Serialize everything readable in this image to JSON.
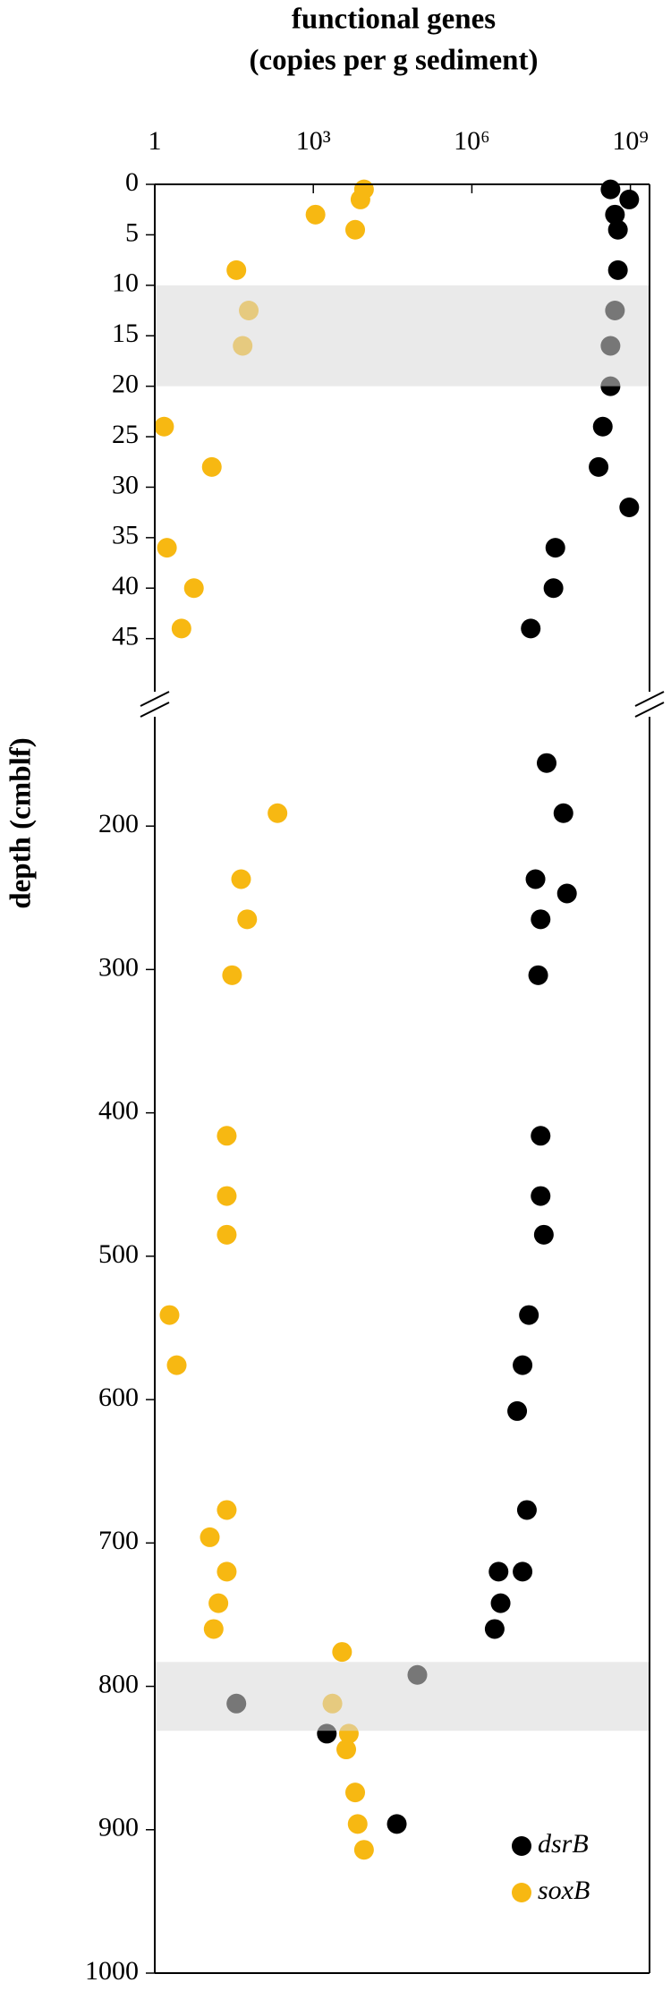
{
  "chart_data": {
    "type": "scatter",
    "title": [
      "functional genes",
      "(copies per g sediment)"
    ],
    "ylabel": "depth (cmblf)",
    "xlog": true,
    "xlim": [
      1,
      2300000000
    ],
    "xticks": [
      1,
      {
        "value": 1000,
        "label": "10³"
      },
      {
        "value": 1000000,
        "label": "10⁶"
      },
      {
        "value": 1000000000,
        "label": "10⁹"
      }
    ],
    "legend_position": "lower right",
    "legend": [
      {
        "name": "dsrB",
        "color": "#000000"
      },
      {
        "name": "soxB",
        "color": "#f7b812"
      }
    ],
    "panels": [
      {
        "ylim": [
          0,
          51.5
        ],
        "yticks": [
          0,
          5,
          10,
          15,
          20,
          25,
          30,
          35,
          40,
          45
        ],
        "shaded": [
          10,
          20
        ],
        "series": [
          {
            "x": [
              420000000,
              950000000,
              510000000,
              580000000,
              580000000,
              510000000,
              420000000,
              420000000,
              300000000,
              250000000,
              950000000,
              38000000,
              35000000,
              13000000
            ],
            "values": [
              0.5,
              1.5,
              3,
              4.5,
              8.5,
              12.5,
              16,
              20,
              24,
              28,
              32,
              36,
              40,
              44
            ]
          },
          {
            "x": [
              9100,
              7800,
              1100,
              6200,
              35,
              60,
              46,
              1.5,
              12,
              1.7,
              5.5,
              3.2
            ],
            "values": [
              0.5,
              1.5,
              3,
              4.5,
              8.5,
              12.5,
              16,
              24,
              28,
              36,
              40,
              44
            ]
          }
        ]
      },
      {
        "ylim": [
          115,
          1000
        ],
        "yticks": [
          200,
          300,
          400,
          500,
          600,
          700,
          800,
          900,
          1000
        ],
        "shaded": [
          783,
          831
        ],
        "series": [
          {
            "x": [
              26000000,
              54000000,
              63000000,
              16000000,
              20000000,
              18000000,
              20000000,
              20000000,
              23000000,
              12000000,
              9100000,
              7200000,
              11000000,
              3200000,
              9100000,
              3500000,
              2700000,
              93000,
              35,
              1800,
              38000
            ],
            "values": [
              156,
              191,
              247,
              237,
              265,
              304,
              416,
              458,
              485,
              541,
              576,
              608,
              677,
              720,
              720,
              742,
              760,
              792,
              812,
              833,
              896
            ]
          },
          {
            "x": [
              210,
              43,
              56,
              29,
              23,
              23,
              23,
              1.9,
              2.6,
              23,
              11,
              23,
              16,
              13,
              3500,
              2300,
              4700,
              4200,
              6200,
              6900,
              9100
            ],
            "values": [
              191,
              237,
              265,
              304,
              416,
              458,
              485,
              541,
              576,
              677,
              696,
              720,
              742,
              760,
              776,
              812,
              833,
              844,
              874,
              896,
              914
            ]
          }
        ]
      }
    ]
  }
}
